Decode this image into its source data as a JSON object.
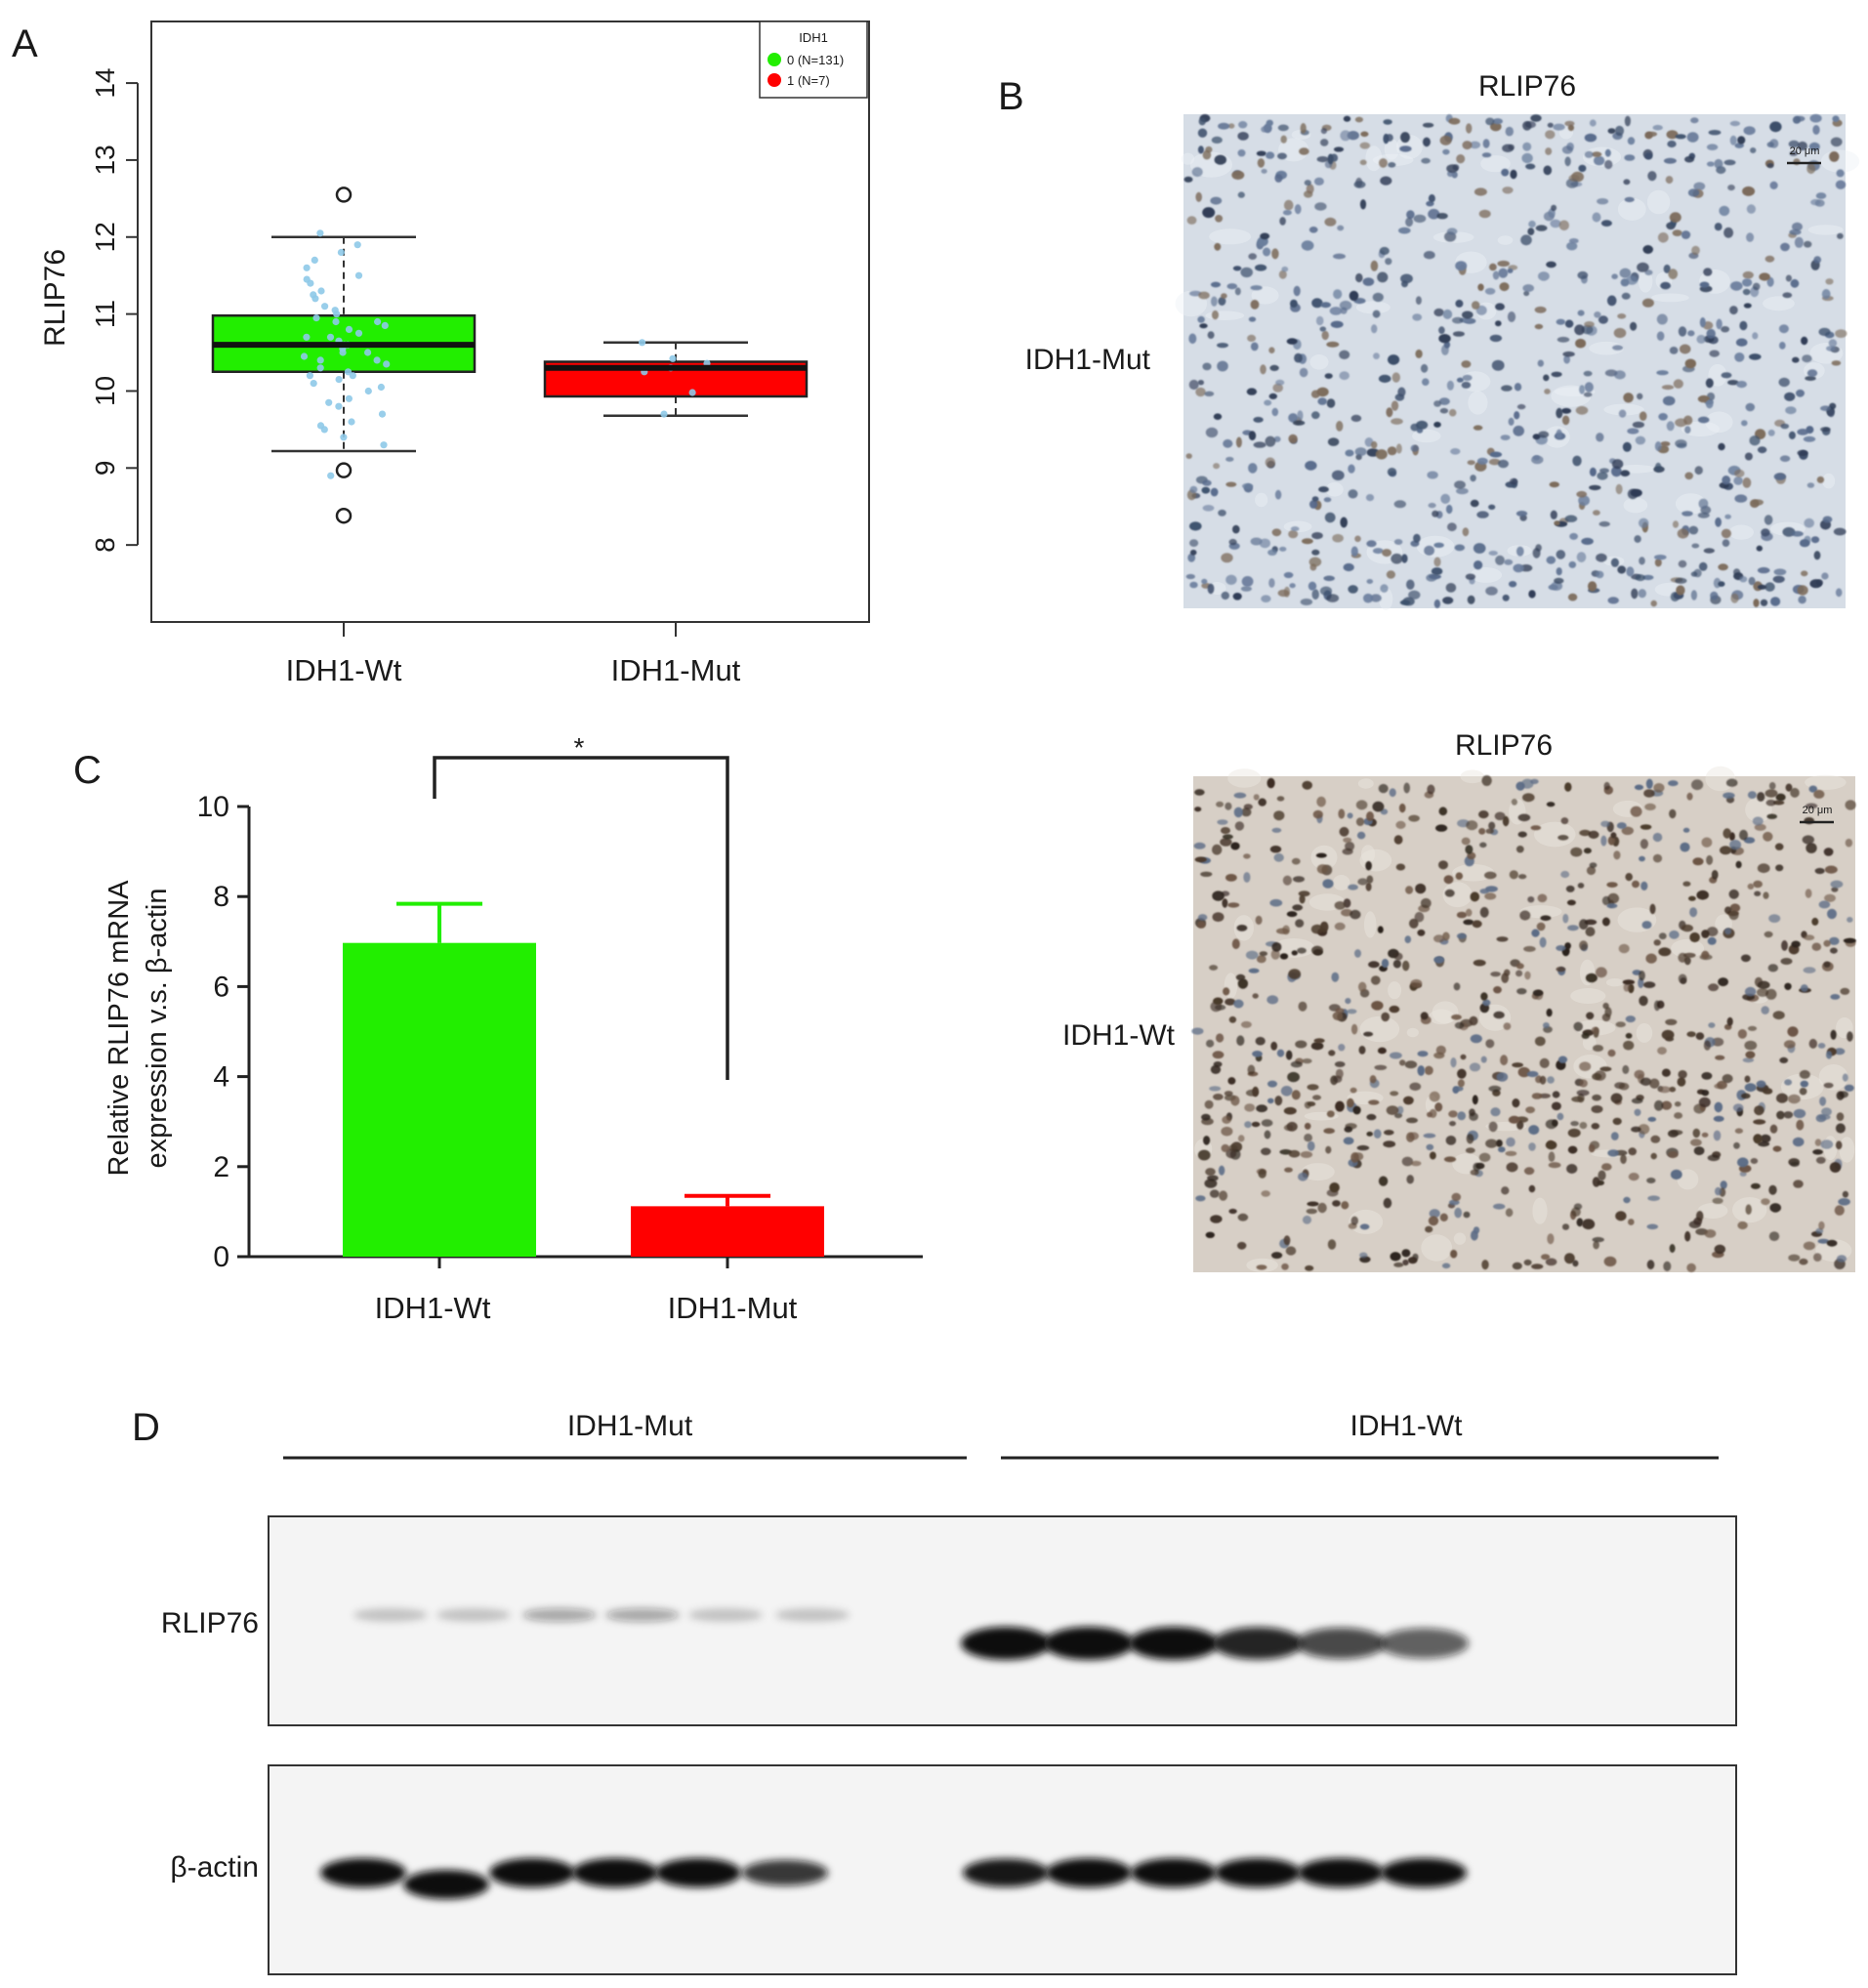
{
  "panel_letters": {
    "a": "A",
    "b": "B",
    "c": "C",
    "d": "D"
  },
  "chart_data": [
    {
      "panel": "A",
      "type": "box",
      "ylabel": "RLIP76",
      "ylim": [
        7.0,
        14.8
      ],
      "yticks": [
        8,
        9,
        10,
        11,
        12,
        13,
        14
      ],
      "categories": [
        "IDH1-Wt",
        "IDH1-Mut"
      ],
      "colors": [
        "#22ee00",
        "#ff0000"
      ],
      "legend": {
        "title": "IDH1",
        "position": "top-right",
        "entries": [
          "0 (N=131)",
          "1 (N=7)"
        ]
      },
      "boxes": [
        {
          "q1": 10.25,
          "median": 10.6,
          "q3": 10.98,
          "whisker_low": 9.22,
          "whisker_high": 12.0,
          "outliers": [
            12.55,
            8.97,
            8.38
          ]
        },
        {
          "q1": 9.93,
          "median": 10.3,
          "q3": 10.38,
          "whisker_low": 9.68,
          "whisker_high": 10.63,
          "outliers": []
        }
      ],
      "jitter_points": [
        [
          10.5,
          10.8,
          10.2,
          11.3,
          9.8,
          10.6,
          11.6,
          10.4,
          9.6,
          10.9,
          11.1,
          10.0,
          11.9,
          10.7,
          9.4,
          10.3,
          11.5,
          10.1,
          9.9,
          10.55,
          11.2,
          10.45,
          9.7,
          10.85,
          11.4,
          10.65,
          9.3,
          10.95,
          11.0,
          10.25,
          10.75,
          9.5,
          11.7,
          10.35,
          10.15,
          12.05,
          10.6,
          9.85,
          11.25,
          10.5,
          8.9,
          10.7,
          11.45,
          10.05,
          9.55,
          10.9,
          11.8,
          10.4,
          10.2,
          11.05
        ],
        [
          10.63,
          10.3,
          10.42,
          10.25,
          9.98,
          9.7,
          10.36
        ]
      ]
    },
    {
      "panel": "C",
      "type": "bar",
      "ylabel_lines": [
        "Relative RLIP76 mRNA",
        "expression v.s. β-actin"
      ],
      "ylim": [
        0,
        10
      ],
      "yticks": [
        0,
        2,
        4,
        6,
        8,
        10
      ],
      "categories": [
        "IDH1-Wt",
        "IDH1-Mut"
      ],
      "values": [
        6.97,
        1.12
      ],
      "error": [
        0.87,
        0.23
      ],
      "colors": [
        "#22ee00",
        "#ff0000"
      ],
      "significance": "*"
    }
  ],
  "panel_b": {
    "top_title": "RLIP76",
    "top_label": "IDH1-Mut",
    "bottom_title": "RLIP76",
    "bottom_label": "IDH1-Wt",
    "scale_bar": "20 μm"
  },
  "panel_d": {
    "group_left": "IDH1-Mut",
    "group_right": "IDH1-Wt",
    "row_top": "RLIP76",
    "row_bottom": "β-actin",
    "rlip76_band_intensity": [
      0.2,
      0.2,
      0.35,
      0.35,
      0.2,
      0.2,
      1.0,
      1.0,
      1.0,
      0.9,
      0.75,
      0.65
    ],
    "actin_band_intensity": [
      1.0,
      1.0,
      1.0,
      1.0,
      1.0,
      0.6,
      0.9,
      1.0,
      1.0,
      1.0,
      1.0,
      1.0
    ]
  }
}
